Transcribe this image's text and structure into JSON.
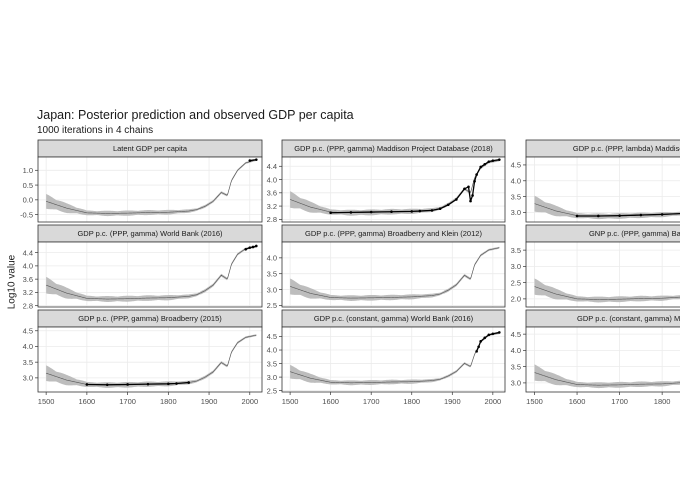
{
  "title": "Japan: Posterior prediction and observed GDP per capita",
  "subtitle": "1000 iterations in 4 chains",
  "ylabel": "Log10 value",
  "colors": {
    "strip": "#d9d9d9",
    "panel_border": "#333333",
    "grid": "#ebebeb",
    "band": "#bdbdbd",
    "median": "#555555",
    "observed": "#000000"
  },
  "chart_data": [
    {
      "type": "area",
      "title": "Latent GDP per capita",
      "xlim": [
        1480,
        2030
      ],
      "xticks": [
        1500,
        1600,
        1700,
        1800,
        1900,
        2000
      ],
      "ylim": [
        -0.75,
        1.45
      ],
      "yticks": [
        -0.5,
        0.0,
        0.5,
        1.0
      ],
      "ytick_labels": [
        "-0.5",
        "0.0",
        "0.5",
        "1.0"
      ],
      "median": [
        [
          1500,
          -0.05
        ],
        [
          1550,
          -0.28
        ],
        [
          1600,
          -0.44
        ],
        [
          1650,
          -0.46
        ],
        [
          1700,
          -0.45
        ],
        [
          1750,
          -0.43
        ],
        [
          1800,
          -0.42
        ],
        [
          1850,
          -0.38
        ],
        [
          1870,
          -0.33
        ],
        [
          1890,
          -0.22
        ],
        [
          1910,
          -0.05
        ],
        [
          1930,
          0.25
        ],
        [
          1945,
          0.15
        ],
        [
          1955,
          0.65
        ],
        [
          1970,
          1.0
        ],
        [
          1990,
          1.25
        ],
        [
          2016,
          1.35
        ]
      ],
      "halfwidth": [
        [
          1500,
          0.25
        ],
        [
          1600,
          0.08
        ],
        [
          1650,
          0.09
        ],
        [
          1700,
          0.09
        ],
        [
          1800,
          0.08
        ],
        [
          1870,
          0.05
        ],
        [
          1950,
          0.04
        ],
        [
          2016,
          0.03
        ]
      ],
      "observed": [
        [
          2000,
          1.33
        ],
        [
          2016,
          1.36
        ]
      ]
    },
    {
      "type": "area",
      "title": "GDP p.c. (PPP, gamma) Maddison Project Database (2018)",
      "xlim": [
        1480,
        2030
      ],
      "xticks": [
        1500,
        1600,
        1700,
        1800,
        1900,
        2000
      ],
      "ylim": [
        2.72,
        4.68
      ],
      "yticks": [
        2.8,
        3.2,
        3.6,
        4.0,
        4.4
      ],
      "ytick_labels": [
        "2.8",
        "3.2",
        "3.6",
        "4.0",
        "4.4"
      ],
      "median": [
        [
          1500,
          3.4
        ],
        [
          1550,
          3.17
        ],
        [
          1600,
          3.02
        ],
        [
          1650,
          3.0
        ],
        [
          1700,
          3.01
        ],
        [
          1750,
          3.03
        ],
        [
          1800,
          3.04
        ],
        [
          1850,
          3.08
        ],
        [
          1870,
          3.13
        ],
        [
          1890,
          3.25
        ],
        [
          1910,
          3.42
        ],
        [
          1930,
          3.72
        ],
        [
          1945,
          3.6
        ],
        [
          1955,
          4.05
        ],
        [
          1970,
          4.35
        ],
        [
          1990,
          4.52
        ],
        [
          2016,
          4.58
        ]
      ],
      "halfwidth": [
        [
          1500,
          0.25
        ],
        [
          1600,
          0.08
        ],
        [
          1650,
          0.09
        ],
        [
          1700,
          0.09
        ],
        [
          1800,
          0.08
        ],
        [
          1870,
          0.05
        ],
        [
          1950,
          0.04
        ],
        [
          2016,
          0.03
        ]
      ],
      "observed": [
        [
          1600,
          3.0
        ],
        [
          1650,
          3.01
        ],
        [
          1700,
          3.02
        ],
        [
          1750,
          3.03
        ],
        [
          1800,
          3.04
        ],
        [
          1820,
          3.05
        ],
        [
          1850,
          3.07
        ],
        [
          1870,
          3.12
        ],
        [
          1890,
          3.24
        ],
        [
          1910,
          3.4
        ],
        [
          1930,
          3.72
        ],
        [
          1940,
          3.78
        ],
        [
          1945,
          3.35
        ],
        [
          1950,
          3.52
        ],
        [
          1955,
          3.95
        ],
        [
          1960,
          4.15
        ],
        [
          1970,
          4.38
        ],
        [
          1980,
          4.46
        ],
        [
          1990,
          4.54
        ],
        [
          2000,
          4.57
        ],
        [
          2016,
          4.6
        ]
      ]
    },
    {
      "type": "area",
      "title": "GDP p.c. (PPP, lambda) Maddison Project",
      "xlim": [
        1480,
        2030
      ],
      "xticks": [
        1500,
        1600,
        1700,
        1800
      ],
      "ylim": [
        2.7,
        4.75
      ],
      "yticks": [
        3.0,
        3.5,
        4.0,
        4.5
      ],
      "ytick_labels": [
        "3.0",
        "3.5",
        "4.0",
        "4.5"
      ],
      "median": [
        [
          1500,
          3.28
        ],
        [
          1550,
          3.05
        ],
        [
          1600,
          2.9
        ],
        [
          1650,
          2.88
        ],
        [
          1700,
          2.89
        ],
        [
          1750,
          2.91
        ],
        [
          1800,
          2.93
        ],
        [
          1850,
          2.97
        ]
      ],
      "halfwidth": [
        [
          1500,
          0.25
        ],
        [
          1600,
          0.08
        ],
        [
          1650,
          0.09
        ],
        [
          1700,
          0.09
        ],
        [
          1800,
          0.08
        ],
        [
          1850,
          0.06
        ]
      ],
      "observed": [
        [
          1600,
          2.89
        ],
        [
          1650,
          2.89
        ],
        [
          1700,
          2.9
        ],
        [
          1750,
          2.92
        ],
        [
          1800,
          2.94
        ],
        [
          1850,
          2.97
        ]
      ]
    },
    {
      "type": "area",
      "title": "GDP p.c. (PPP, gamma) World Bank (2016)",
      "xlim": [
        1480,
        2030
      ],
      "xticks": [
        1500,
        1600,
        1700,
        1800,
        1900,
        2000
      ],
      "ylim": [
        2.76,
        4.72
      ],
      "yticks": [
        2.8,
        3.2,
        3.6,
        4.0,
        4.4
      ],
      "ytick_labels": [
        "2.8",
        "3.2",
        "3.6",
        "4.0",
        "4.4"
      ],
      "median": [
        [
          1500,
          3.42
        ],
        [
          1550,
          3.18
        ],
        [
          1600,
          3.02
        ],
        [
          1650,
          3.0
        ],
        [
          1700,
          3.01
        ],
        [
          1750,
          3.03
        ],
        [
          1800,
          3.04
        ],
        [
          1850,
          3.08
        ],
        [
          1870,
          3.13
        ],
        [
          1890,
          3.25
        ],
        [
          1910,
          3.42
        ],
        [
          1930,
          3.72
        ],
        [
          1945,
          3.6
        ],
        [
          1955,
          4.05
        ],
        [
          1970,
          4.35
        ],
        [
          1990,
          4.52
        ],
        [
          2016,
          4.58
        ]
      ],
      "halfwidth": [
        [
          1500,
          0.25
        ],
        [
          1600,
          0.08
        ],
        [
          1650,
          0.09
        ],
        [
          1700,
          0.09
        ],
        [
          1800,
          0.08
        ],
        [
          1870,
          0.05
        ],
        [
          1950,
          0.04
        ],
        [
          2016,
          0.03
        ]
      ],
      "observed": [
        [
          1990,
          4.5
        ],
        [
          2000,
          4.55
        ],
        [
          2008,
          4.57
        ],
        [
          2016,
          4.6
        ]
      ]
    },
    {
      "type": "area",
      "title": "GDP p.c. (PPP, gamma) Broadberry and Klein (2012)",
      "xlim": [
        1480,
        2030
      ],
      "xticks": [
        1500,
        1600,
        1700,
        1800,
        1900,
        2000
      ],
      "ylim": [
        2.45,
        4.5
      ],
      "yticks": [
        2.5,
        3.0,
        3.5,
        4.0
      ],
      "ytick_labels": [
        "2.5",
        "3.0",
        "3.5",
        "4.0"
      ],
      "median": [
        [
          1500,
          3.1
        ],
        [
          1550,
          2.88
        ],
        [
          1600,
          2.75
        ],
        [
          1650,
          2.73
        ],
        [
          1700,
          2.74
        ],
        [
          1750,
          2.75
        ],
        [
          1800,
          2.77
        ],
        [
          1850,
          2.81
        ],
        [
          1870,
          2.86
        ],
        [
          1890,
          2.98
        ],
        [
          1910,
          3.15
        ],
        [
          1930,
          3.45
        ],
        [
          1945,
          3.33
        ],
        [
          1955,
          3.78
        ],
        [
          1970,
          4.08
        ],
        [
          1990,
          4.25
        ],
        [
          2016,
          4.32
        ]
      ],
      "halfwidth": [
        [
          1500,
          0.25
        ],
        [
          1600,
          0.08
        ],
        [
          1650,
          0.09
        ],
        [
          1700,
          0.09
        ],
        [
          1800,
          0.08
        ],
        [
          1870,
          0.05
        ],
        [
          1950,
          0.04
        ],
        [
          2016,
          0.03
        ]
      ],
      "observed": []
    },
    {
      "type": "area",
      "title": "GNP p.c. (PPP, gamma) Bairoch",
      "xlim": [
        1480,
        2030
      ],
      "xticks": [
        1500,
        1600,
        1700,
        1800
      ],
      "ylim": [
        1.75,
        3.75
      ],
      "yticks": [
        2.0,
        2.5,
        3.0,
        3.5
      ],
      "ytick_labels": [
        "2.0",
        "2.5",
        "3.0",
        "3.5"
      ],
      "median": [
        [
          1500,
          2.38
        ],
        [
          1550,
          2.15
        ],
        [
          1600,
          2.0
        ],
        [
          1650,
          1.98
        ],
        [
          1700,
          1.99
        ],
        [
          1750,
          2.01
        ],
        [
          1800,
          2.02
        ],
        [
          1850,
          2.06
        ]
      ],
      "halfwidth": [
        [
          1500,
          0.25
        ],
        [
          1600,
          0.08
        ],
        [
          1650,
          0.09
        ],
        [
          1700,
          0.09
        ],
        [
          1800,
          0.08
        ],
        [
          1850,
          0.06
        ]
      ],
      "observed": []
    },
    {
      "type": "area",
      "title": "GDP p.c. (PPP, gamma) Broadberry (2015)",
      "xlim": [
        1480,
        2030
      ],
      "xticks": [
        1500,
        1600,
        1700,
        1800,
        1900,
        2000
      ],
      "ylim": [
        2.55,
        4.62
      ],
      "yticks": [
        3.0,
        3.5,
        4.0,
        4.5
      ],
      "ytick_labels": [
        "3.0",
        "3.5",
        "4.0",
        "4.5"
      ],
      "median": [
        [
          1500,
          3.15
        ],
        [
          1550,
          2.93
        ],
        [
          1600,
          2.79
        ],
        [
          1650,
          2.77
        ],
        [
          1700,
          2.78
        ],
        [
          1750,
          2.8
        ],
        [
          1800,
          2.81
        ],
        [
          1850,
          2.85
        ],
        [
          1870,
          2.9
        ],
        [
          1890,
          3.02
        ],
        [
          1910,
          3.19
        ],
        [
          1930,
          3.49
        ],
        [
          1945,
          3.37
        ],
        [
          1955,
          3.82
        ],
        [
          1970,
          4.12
        ],
        [
          1990,
          4.29
        ],
        [
          2016,
          4.36
        ]
      ],
      "halfwidth": [
        [
          1500,
          0.25
        ],
        [
          1600,
          0.08
        ],
        [
          1650,
          0.09
        ],
        [
          1700,
          0.09
        ],
        [
          1800,
          0.08
        ],
        [
          1870,
          0.05
        ],
        [
          1950,
          0.04
        ],
        [
          2016,
          0.03
        ]
      ],
      "observed": [
        [
          1600,
          2.79
        ],
        [
          1650,
          2.78
        ],
        [
          1700,
          2.79
        ],
        [
          1750,
          2.8
        ],
        [
          1800,
          2.81
        ],
        [
          1820,
          2.82
        ],
        [
          1850,
          2.85
        ]
      ]
    },
    {
      "type": "area",
      "title": "GDP p.c. (constant, gamma) World Bank (2016)",
      "xlim": [
        1480,
        2030
      ],
      "xticks": [
        1500,
        1600,
        1700,
        1800,
        1900,
        2000
      ],
      "ylim": [
        2.45,
        4.85
      ],
      "yticks": [
        2.5,
        3.0,
        3.5,
        4.0,
        4.5
      ],
      "ytick_labels": [
        "2.5",
        "3.0",
        "3.5",
        "4.0",
        "4.5"
      ],
      "median": [
        [
          1500,
          3.2
        ],
        [
          1550,
          2.96
        ],
        [
          1600,
          2.81
        ],
        [
          1650,
          2.79
        ],
        [
          1700,
          2.8
        ],
        [
          1750,
          2.82
        ],
        [
          1800,
          2.83
        ],
        [
          1850,
          2.87
        ],
        [
          1870,
          2.92
        ],
        [
          1890,
          3.04
        ],
        [
          1910,
          3.21
        ],
        [
          1930,
          3.51
        ],
        [
          1945,
          3.39
        ],
        [
          1955,
          3.84
        ],
        [
          1970,
          4.3
        ],
        [
          1990,
          4.55
        ],
        [
          2016,
          4.62
        ]
      ],
      "halfwidth": [
        [
          1500,
          0.25
        ],
        [
          1600,
          0.08
        ],
        [
          1650,
          0.09
        ],
        [
          1700,
          0.09
        ],
        [
          1800,
          0.08
        ],
        [
          1870,
          0.05
        ],
        [
          1950,
          0.04
        ],
        [
          2016,
          0.03
        ]
      ],
      "observed": [
        [
          1960,
          3.95
        ],
        [
          1965,
          4.12
        ],
        [
          1970,
          4.32
        ],
        [
          1980,
          4.45
        ],
        [
          1990,
          4.56
        ],
        [
          2000,
          4.6
        ],
        [
          2016,
          4.65
        ]
      ]
    },
    {
      "type": "area",
      "title": "GDP p.c. (constant, gamma) Measuring",
      "xlim": [
        1480,
        2030
      ],
      "xticks": [
        1500,
        1600,
        1700,
        1800
      ],
      "ylim": [
        2.72,
        4.72
      ],
      "yticks": [
        3.0,
        3.5,
        4.0,
        4.5
      ],
      "ytick_labels": [
        "3.0",
        "3.5",
        "4.0",
        "4.5"
      ],
      "median": [
        [
          1500,
          3.32
        ],
        [
          1550,
          3.1
        ],
        [
          1600,
          2.95
        ],
        [
          1650,
          2.93
        ],
        [
          1700,
          2.94
        ],
        [
          1750,
          2.96
        ],
        [
          1800,
          2.97
        ],
        [
          1850,
          3.01
        ]
      ],
      "halfwidth": [
        [
          1500,
          0.25
        ],
        [
          1600,
          0.08
        ],
        [
          1650,
          0.09
        ],
        [
          1700,
          0.09
        ],
        [
          1800,
          0.08
        ],
        [
          1850,
          0.06
        ]
      ],
      "observed": []
    }
  ]
}
